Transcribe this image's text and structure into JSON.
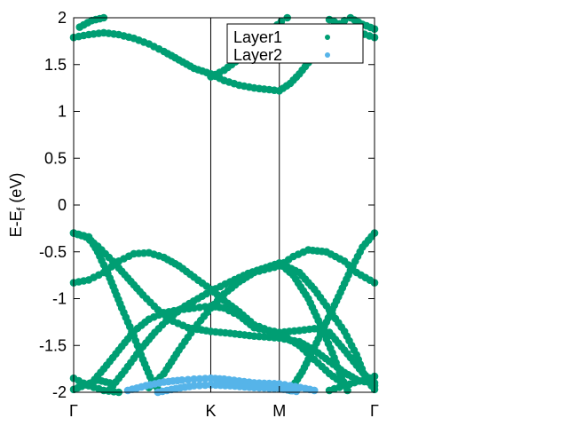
{
  "chart_data": {
    "type": "scatter",
    "title": "",
    "ylabel": {
      "main": "E-E",
      "sub": "f",
      "unit": " (eV)"
    },
    "ylim": [
      -2,
      2
    ],
    "y_ticks": [
      {
        "value": 2,
        "label": "2"
      },
      {
        "value": 1.5,
        "label": "1.5"
      },
      {
        "value": 1,
        "label": "1"
      },
      {
        "value": 0.5,
        "label": "0.5"
      },
      {
        "value": 0,
        "label": "0"
      },
      {
        "value": -0.5,
        "label": "-0.5"
      },
      {
        "value": -1,
        "label": "-1"
      },
      {
        "value": -1.5,
        "label": "-1.5"
      },
      {
        "value": -2,
        "label": "-2"
      }
    ],
    "xlim": [
      0,
      1
    ],
    "x_ticks": [
      {
        "value": 0,
        "label": "Γ"
      },
      {
        "value": 0.4557,
        "label": "K"
      },
      {
        "value": 0.6836,
        "label": "M"
      },
      {
        "value": 1,
        "label": "Γ"
      }
    ],
    "vlines": [
      0.4557,
      0.6836
    ],
    "legend_position": "top-right",
    "series": [
      {
        "name": "Layer1",
        "color": "#009e73",
        "bands": [
          [
            [
              0,
              1.79
            ],
            [
              0.05,
              1.82
            ],
            [
              0.1,
              1.84
            ],
            [
              0.15,
              1.82
            ],
            [
              0.2,
              1.78
            ],
            [
              0.25,
              1.72
            ],
            [
              0.3,
              1.64
            ],
            [
              0.35,
              1.55
            ],
            [
              0.4,
              1.46
            ],
            [
              0.4557,
              1.4
            ],
            [
              0.5,
              1.33
            ],
            [
              0.55,
              1.28
            ],
            [
              0.6,
              1.25
            ],
            [
              0.6836,
              1.22
            ],
            [
              0.72,
              1.3
            ],
            [
              0.75,
              1.4
            ],
            [
              0.78,
              1.52
            ],
            [
              0.81,
              1.65
            ],
            [
              0.84,
              1.78
            ],
            [
              0.87,
              1.9
            ],
            [
              0.9,
              1.97
            ]
          ],
          [
            [
              0.02,
              1.9
            ],
            [
              0.06,
              1.97
            ],
            [
              0.1,
              2.0
            ]
          ],
          [
            [
              0.4557,
              1.37
            ],
            [
              0.5,
              1.44
            ],
            [
              0.55,
              1.56
            ],
            [
              0.6,
              1.7
            ],
            [
              0.65,
              1.85
            ],
            [
              0.69,
              1.96
            ],
            [
              0.71,
              2.0
            ]
          ],
          [
            [
              0.85,
              1.98
            ],
            [
              0.9,
              1.91
            ],
            [
              0.95,
              1.84
            ],
            [
              1,
              1.79
            ]
          ],
          [
            [
              0.92,
              2.0
            ],
            [
              0.96,
              1.93
            ],
            [
              1,
              1.88
            ]
          ],
          [
            [
              0,
              -0.3
            ],
            [
              0.04,
              -0.34
            ],
            [
              0.08,
              -0.44
            ],
            [
              0.13,
              -0.6
            ],
            [
              0.18,
              -0.78
            ],
            [
              0.23,
              -0.96
            ],
            [
              0.28,
              -1.12
            ],
            [
              0.33,
              -1.24
            ],
            [
              0.38,
              -1.31
            ],
            [
              0.4557,
              -1.35
            ],
            [
              0.52,
              -1.37
            ],
            [
              0.6,
              -1.4
            ],
            [
              0.6836,
              -1.42
            ],
            [
              0.75,
              -1.46
            ],
            [
              0.8,
              -1.55
            ],
            [
              0.85,
              -1.67
            ],
            [
              0.9,
              -1.79
            ],
            [
              0.95,
              -1.88
            ],
            [
              1,
              -1.9
            ]
          ],
          [
            [
              0,
              -0.83
            ],
            [
              0.05,
              -0.8
            ],
            [
              0.1,
              -0.72
            ],
            [
              0.15,
              -0.6
            ],
            [
              0.2,
              -0.52
            ],
            [
              0.25,
              -0.51
            ],
            [
              0.3,
              -0.56
            ],
            [
              0.35,
              -0.65
            ],
            [
              0.4,
              -0.77
            ],
            [
              0.4557,
              -0.9
            ],
            [
              0.5,
              -1.02
            ],
            [
              0.55,
              -1.14
            ],
            [
              0.6,
              -1.28
            ],
            [
              0.65,
              -1.34
            ],
            [
              0.6836,
              -1.36
            ],
            [
              0.75,
              -1.34
            ],
            [
              0.8,
              -1.32
            ],
            [
              0.85,
              -1.36
            ],
            [
              0.9,
              -1.55
            ],
            [
              0.95,
              -1.75
            ],
            [
              1,
              -1.93
            ]
          ],
          [
            [
              0,
              -0.3
            ],
            [
              0.05,
              -0.34
            ],
            [
              0.08,
              -0.5
            ],
            [
              0.12,
              -0.78
            ],
            [
              0.16,
              -1.1
            ],
            [
              0.2,
              -1.4
            ],
            [
              0.23,
              -1.65
            ],
            [
              0.26,
              -1.88
            ],
            [
              0.28,
              -1.97
            ]
          ],
          [
            [
              0.12,
              -1.97
            ],
            [
              0.17,
              -1.77
            ],
            [
              0.22,
              -1.55
            ],
            [
              0.27,
              -1.36
            ],
            [
              0.32,
              -1.2
            ],
            [
              0.37,
              -1.08
            ],
            [
              0.4557,
              -0.92
            ],
            [
              0.52,
              -0.82
            ],
            [
              0.58,
              -0.73
            ],
            [
              0.6836,
              -0.62
            ],
            [
              0.75,
              -0.72
            ],
            [
              0.8,
              -0.9
            ],
            [
              0.85,
              -1.12
            ],
            [
              0.9,
              -1.35
            ],
            [
              0.94,
              -1.6
            ],
            [
              0.97,
              -1.85
            ],
            [
              1,
              -1.97
            ]
          ],
          [
            [
              0.06,
              -1.9
            ],
            [
              0.1,
              -1.75
            ],
            [
              0.15,
              -1.55
            ],
            [
              0.2,
              -1.35
            ],
            [
              0.25,
              -1.22
            ],
            [
              0.3,
              -1.15
            ],
            [
              0.35,
              -1.12
            ],
            [
              0.4,
              -1.1
            ],
            [
              0.4557,
              -1.08
            ],
            [
              0.5,
              -1.1
            ],
            [
              0.55,
              -1.18
            ],
            [
              0.6,
              -1.31
            ],
            [
              0.65,
              -1.35
            ],
            [
              0.6836,
              -1.37
            ],
            [
              0.75,
              -1.5
            ],
            [
              0.8,
              -1.65
            ],
            [
              0.85,
              -1.8
            ],
            [
              0.9,
              -1.92
            ]
          ],
          [
            [
              0.25,
              -1.95
            ],
            [
              0.3,
              -1.8
            ],
            [
              0.35,
              -1.55
            ],
            [
              0.4,
              -1.32
            ],
            [
              0.4557,
              -1.1
            ],
            [
              0.5,
              -0.95
            ],
            [
              0.55,
              -0.82
            ],
            [
              0.6,
              -0.72
            ],
            [
              0.6836,
              -0.65
            ],
            [
              0.73,
              -0.55
            ],
            [
              0.78,
              -0.48
            ],
            [
              0.84,
              -0.5
            ],
            [
              0.9,
              -0.6
            ],
            [
              0.94,
              -0.72
            ],
            [
              1,
              -0.83
            ]
          ],
          [
            [
              0.6836,
              -0.62
            ],
            [
              0.73,
              -0.75
            ],
            [
              0.78,
              -1.0
            ],
            [
              0.82,
              -1.28
            ],
            [
              0.86,
              -1.58
            ],
            [
              0.89,
              -1.84
            ],
            [
              0.91,
              -1.98
            ]
          ],
          [
            [
              0.72,
              -1.98
            ],
            [
              0.76,
              -1.78
            ],
            [
              0.8,
              -1.52
            ],
            [
              0.84,
              -1.25
            ],
            [
              0.88,
              -0.98
            ],
            [
              0.92,
              -0.7
            ],
            [
              0.96,
              -0.45
            ],
            [
              1,
              -0.3
            ]
          ],
          [
            [
              0,
              -1.85
            ],
            [
              0.05,
              -1.93
            ],
            [
              0.1,
              -1.98
            ],
            [
              0.15,
              -2.0
            ]
          ],
          [
            [
              0,
              -1.97
            ],
            [
              0.04,
              -1.92
            ],
            [
              0.08,
              -1.87
            ],
            [
              0.12,
              -1.9
            ]
          ],
          [
            [
              0.85,
              -1.98
            ],
            [
              0.9,
              -1.93
            ],
            [
              0.95,
              -1.88
            ],
            [
              1,
              -1.83
            ]
          ]
        ]
      },
      {
        "name": "Layer2",
        "color": "#56b4e9",
        "bands": [
          [
            [
              0.18,
              -1.98
            ],
            [
              0.24,
              -1.93
            ],
            [
              0.3,
              -1.89
            ],
            [
              0.36,
              -1.87
            ],
            [
              0.4,
              -1.86
            ],
            [
              0.4557,
              -1.85
            ],
            [
              0.5,
              -1.86
            ],
            [
              0.55,
              -1.88
            ],
            [
              0.6,
              -1.9
            ],
            [
              0.6836,
              -1.91
            ],
            [
              0.72,
              -1.93
            ],
            [
              0.77,
              -1.96
            ],
            [
              0.8,
              -1.98
            ]
          ],
          [
            [
              0.28,
              -2.0
            ],
            [
              0.34,
              -1.96
            ],
            [
              0.4,
              -1.93
            ],
            [
              0.4557,
              -1.92
            ],
            [
              0.52,
              -1.93
            ],
            [
              0.6,
              -1.95
            ],
            [
              0.6836,
              -1.96
            ],
            [
              0.74,
              -1.99
            ]
          ]
        ]
      }
    ]
  }
}
